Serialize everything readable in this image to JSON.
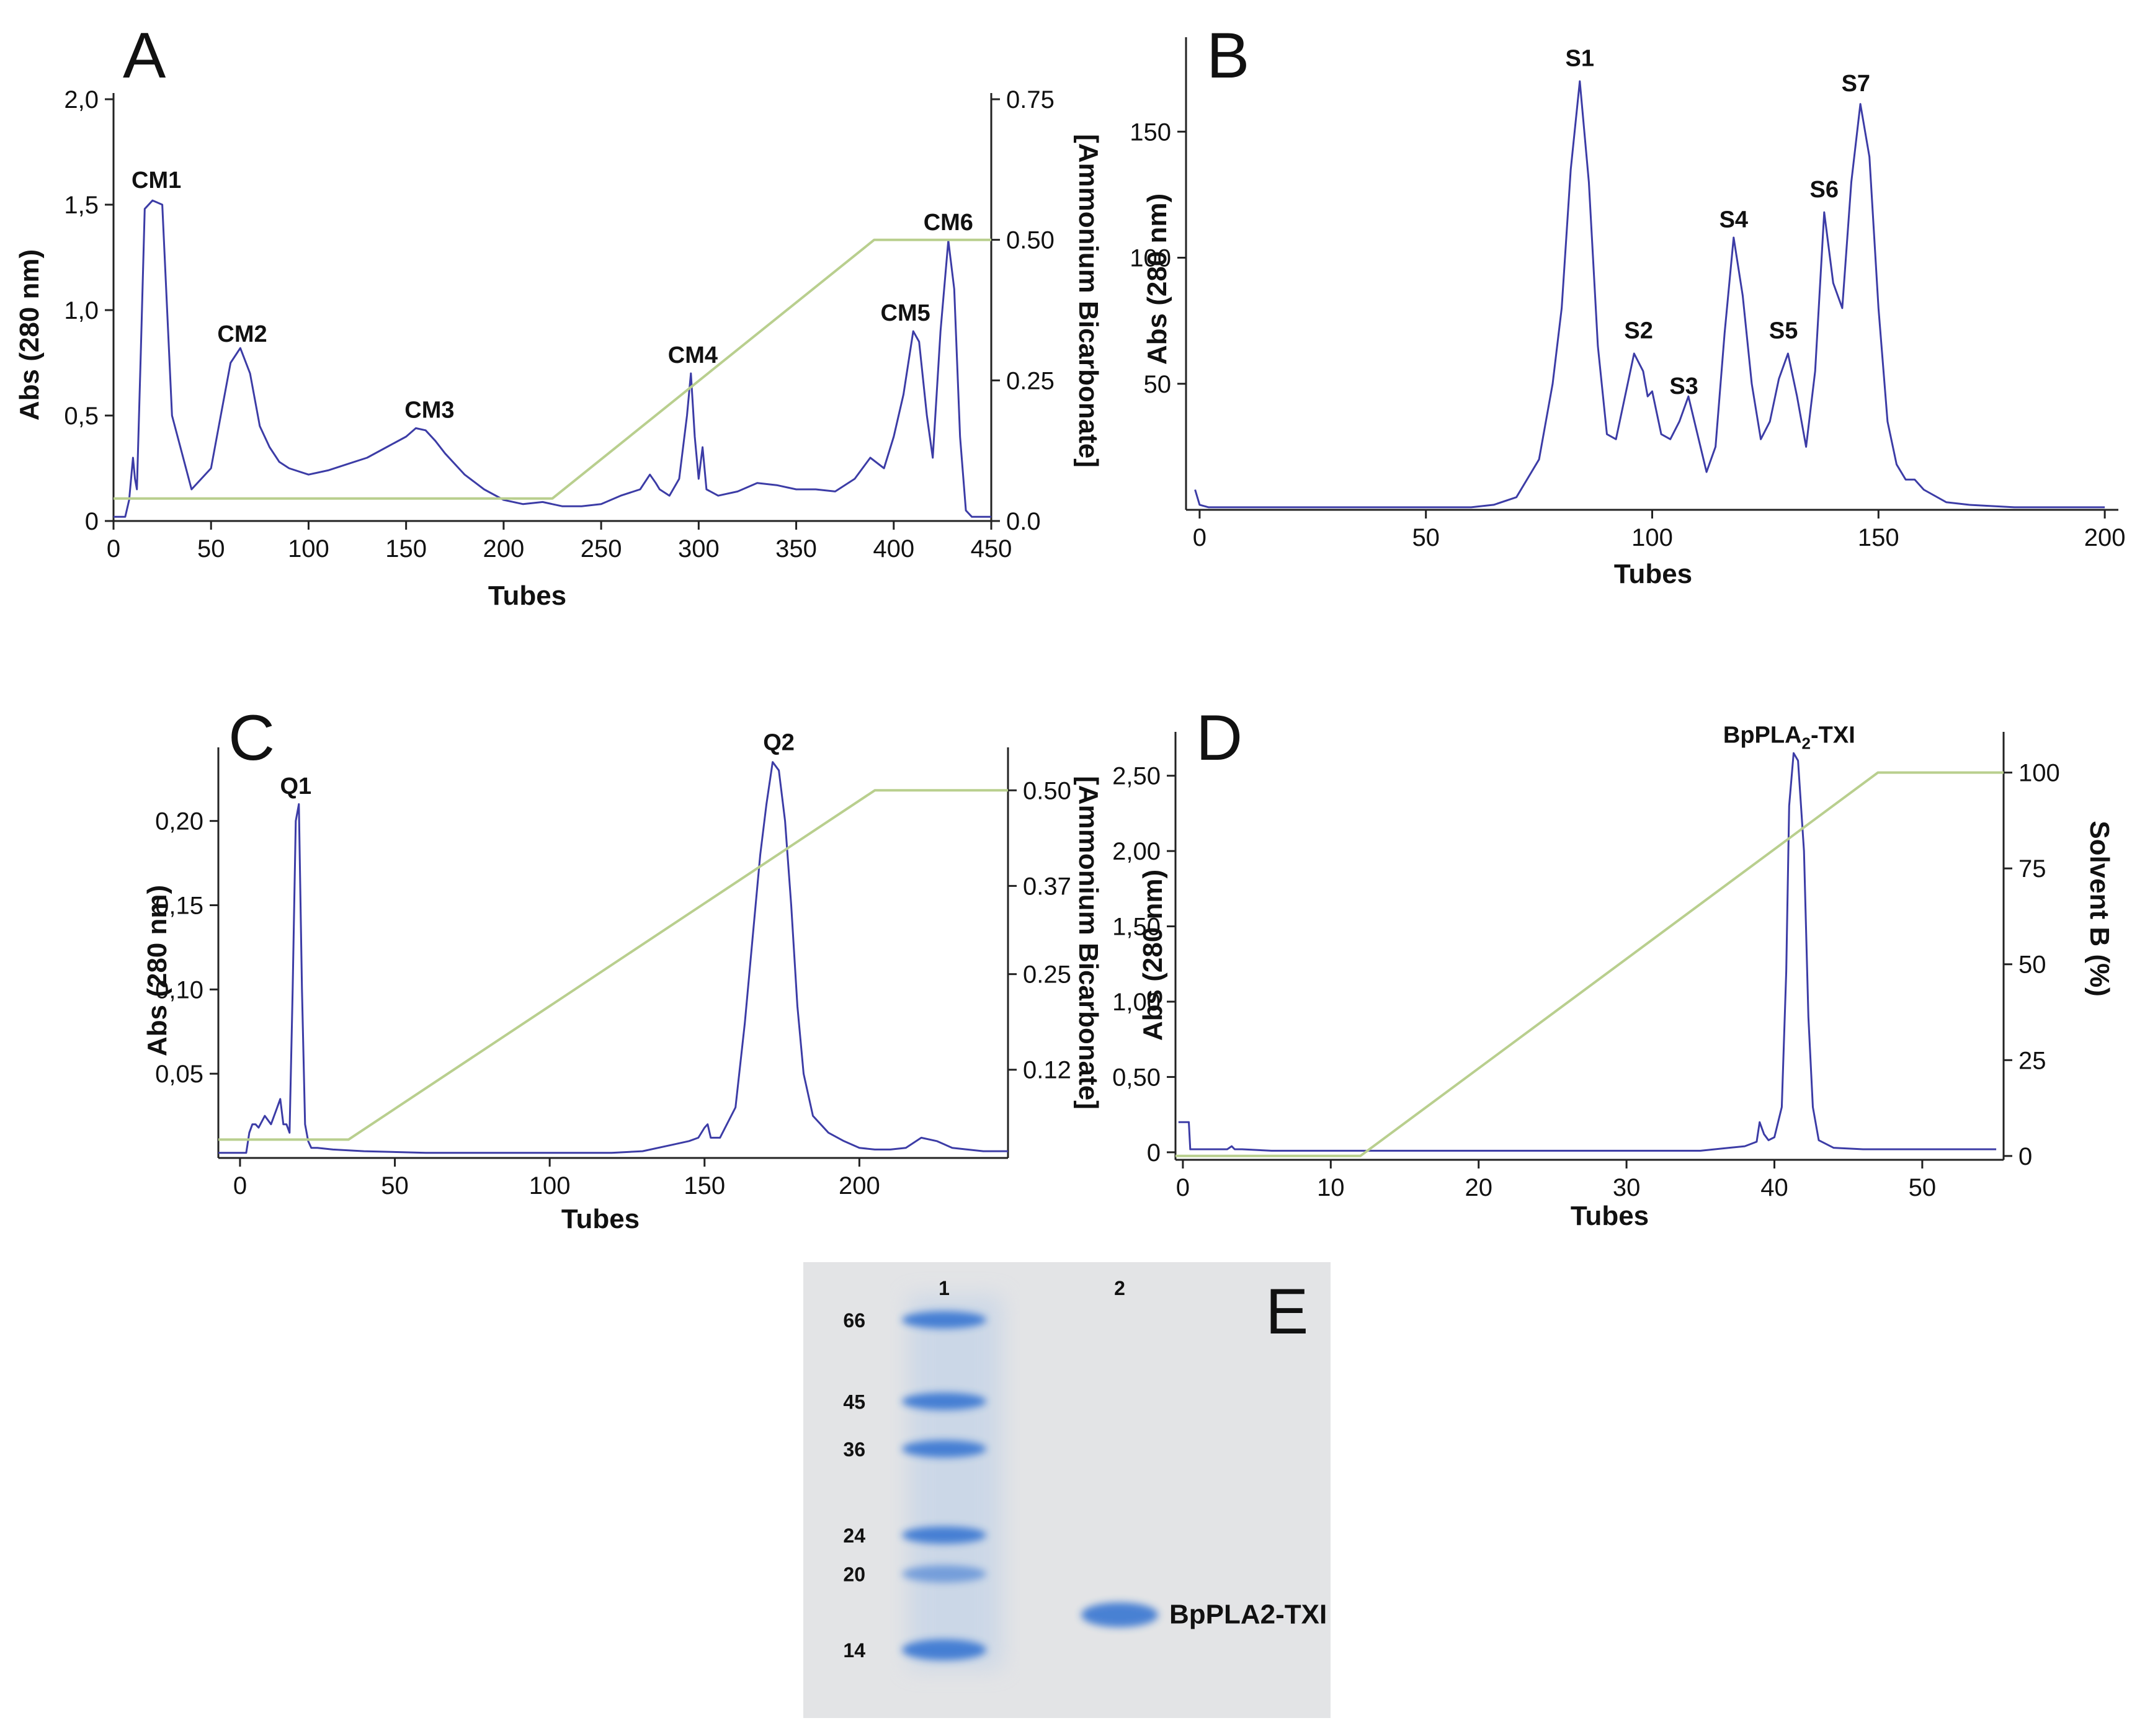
{
  "colors": {
    "absorbance": "#3c3ca6",
    "gradient": "#b9cf8e",
    "axis": "#222222",
    "gel_bg": "#e3e4e6",
    "band": "#2f6fd0"
  },
  "chart_data": [
    {
      "id": "A",
      "type": "line",
      "panel_label": "A",
      "xlabel": "Tubes",
      "ylabel": "Abs (280 nm)",
      "y2label": "[Ammonium Bicarbonate]",
      "xlim": [
        0,
        450
      ],
      "ylim": [
        0,
        2.0
      ],
      "y2lim": [
        0,
        0.75
      ],
      "xticks": [
        "0",
        "50",
        "100",
        "150",
        "200",
        "250",
        "300",
        "350",
        "400",
        "450"
      ],
      "yticks": [
        "0",
        "0,5",
        "1,0",
        "1,5",
        "2,0"
      ],
      "y2ticks": [
        "0.0",
        "0.25",
        "0.50",
        "0.75"
      ],
      "series": [
        {
          "role": "absorbance",
          "x": [
            0,
            6,
            8,
            10,
            11,
            12,
            14,
            16,
            20,
            25,
            30,
            40,
            50,
            55,
            60,
            65,
            70,
            75,
            80,
            85,
            90,
            100,
            110,
            120,
            130,
            140,
            150,
            155,
            160,
            165,
            170,
            180,
            190,
            200,
            210,
            220,
            230,
            240,
            250,
            260,
            270,
            275,
            278,
            280,
            285,
            290,
            294,
            296,
            298,
            300,
            302,
            304,
            310,
            320,
            330,
            340,
            350,
            360,
            370,
            380,
            388,
            395,
            400,
            405,
            410,
            413,
            417,
            420,
            424,
            428,
            431,
            434,
            437,
            440,
            450
          ],
          "y": [
            0.02,
            0.02,
            0.1,
            0.3,
            0.2,
            0.15,
            0.8,
            1.48,
            1.52,
            1.5,
            0.5,
            0.15,
            0.25,
            0.5,
            0.75,
            0.82,
            0.7,
            0.45,
            0.35,
            0.28,
            0.25,
            0.22,
            0.24,
            0.27,
            0.3,
            0.35,
            0.4,
            0.44,
            0.43,
            0.38,
            0.32,
            0.22,
            0.15,
            0.1,
            0.08,
            0.09,
            0.07,
            0.07,
            0.08,
            0.12,
            0.15,
            0.22,
            0.18,
            0.15,
            0.12,
            0.2,
            0.5,
            0.7,
            0.4,
            0.2,
            0.35,
            0.15,
            0.12,
            0.14,
            0.18,
            0.17,
            0.15,
            0.15,
            0.14,
            0.2,
            0.3,
            0.25,
            0.4,
            0.6,
            0.9,
            0.85,
            0.5,
            0.3,
            0.9,
            1.33,
            1.1,
            0.4,
            0.05,
            0.02,
            0.02
          ]
        },
        {
          "role": "gradient",
          "axis": "y2",
          "x": [
            0,
            225,
            390,
            450
          ],
          "y": [
            0.04,
            0.04,
            0.5,
            0.5
          ]
        }
      ],
      "annotations": [
        {
          "text": "CM1",
          "x": 22,
          "y": 1.58
        },
        {
          "text": "CM2",
          "x": 66,
          "y": 0.85
        },
        {
          "text": "CM3",
          "x": 162,
          "y": 0.49
        },
        {
          "text": "CM4",
          "x": 297,
          "y": 0.75
        },
        {
          "text": "CM5",
          "x": 406,
          "y": 0.95
        },
        {
          "text": "CM6",
          "x": 428,
          "y": 1.38
        }
      ]
    },
    {
      "id": "B",
      "type": "line",
      "panel_label": "B",
      "xlabel": "Tubes",
      "ylabel": "Abs (280 nm)",
      "xlim": [
        -3,
        203
      ],
      "ylim": [
        0,
        185
      ],
      "xticks": [
        "0",
        "50",
        "100",
        "150",
        "200"
      ],
      "yticks": [
        "50",
        "100",
        "150"
      ],
      "series": [
        {
          "role": "absorbance",
          "x": [
            -1,
            0,
            2,
            10,
            20,
            30,
            40,
            50,
            60,
            65,
            70,
            75,
            78,
            80,
            82,
            84,
            86,
            88,
            90,
            92,
            94,
            96,
            98,
            99,
            100,
            102,
            104,
            106,
            108,
            110,
            112,
            114,
            116,
            118,
            120,
            122,
            124,
            126,
            128,
            130,
            132,
            134,
            136,
            138,
            140,
            142,
            144,
            146,
            148,
            150,
            152,
            154,
            156,
            158,
            160,
            165,
            170,
            180,
            190,
            200
          ],
          "y": [
            8,
            2,
            1,
            1,
            1,
            1,
            1,
            1,
            1,
            2,
            5,
            20,
            50,
            80,
            135,
            170,
            130,
            65,
            30,
            28,
            45,
            62,
            55,
            45,
            47,
            30,
            28,
            35,
            45,
            30,
            15,
            25,
            70,
            108,
            85,
            50,
            28,
            35,
            52,
            62,
            45,
            25,
            55,
            118,
            90,
            80,
            130,
            161,
            140,
            80,
            35,
            18,
            12,
            12,
            8,
            3,
            2,
            1,
            1,
            1
          ]
        }
      ],
      "annotations": [
        {
          "text": "S1",
          "x": 84,
          "y": 176
        },
        {
          "text": "S2",
          "x": 97,
          "y": 68
        },
        {
          "text": "S3",
          "x": 107,
          "y": 46
        },
        {
          "text": "S4",
          "x": 118,
          "y": 112
        },
        {
          "text": "S5",
          "x": 129,
          "y": 68
        },
        {
          "text": "S6",
          "x": 138,
          "y": 124
        },
        {
          "text": "S7",
          "x": 145,
          "y": 166
        }
      ]
    },
    {
      "id": "C",
      "type": "line",
      "panel_label": "C",
      "xlabel": "Tubes",
      "ylabel": "Abs (280 nm)",
      "y2label": "[Ammonium Bicarbonate]",
      "xlim": [
        -7,
        248
      ],
      "ylim": [
        0,
        0.24
      ],
      "y2lim": [
        0,
        0.55
      ],
      "xticks": [
        "0",
        "50",
        "100",
        "150",
        "200"
      ],
      "yticks": [
        "0,05",
        "0,10",
        "0,15",
        "0,20"
      ],
      "y2ticks": [
        "0.12",
        "0.25",
        "0.37",
        "0.50"
      ],
      "series": [
        {
          "role": "absorbance",
          "x": [
            -7,
            2,
            3,
            4,
            5,
            6,
            8,
            10,
            11,
            12,
            13,
            14,
            15,
            16,
            17,
            18,
            19,
            20,
            21,
            22,
            23,
            24,
            25,
            30,
            40,
            60,
            80,
            100,
            120,
            130,
            140,
            145,
            148,
            150,
            151,
            152,
            155,
            160,
            163,
            166,
            168,
            170,
            172,
            174,
            176,
            178,
            180,
            182,
            185,
            190,
            195,
            200,
            205,
            210,
            215,
            220,
            225,
            230,
            240,
            248
          ],
          "y": [
            0.003,
            0.003,
            0.015,
            0.02,
            0.02,
            0.018,
            0.025,
            0.02,
            0.025,
            0.03,
            0.035,
            0.02,
            0.02,
            0.015,
            0.1,
            0.2,
            0.21,
            0.1,
            0.02,
            0.01,
            0.006,
            0.006,
            0.006,
            0.005,
            0.004,
            0.003,
            0.003,
            0.003,
            0.003,
            0.004,
            0.008,
            0.01,
            0.012,
            0.018,
            0.02,
            0.012,
            0.012,
            0.03,
            0.08,
            0.14,
            0.18,
            0.21,
            0.235,
            0.23,
            0.2,
            0.15,
            0.09,
            0.05,
            0.025,
            0.015,
            0.01,
            0.006,
            0.005,
            0.005,
            0.006,
            0.012,
            0.01,
            0.006,
            0.004,
            0.004
          ]
        },
        {
          "role": "gradient",
          "axis": "y2",
          "x": [
            -7,
            35,
            205,
            248
          ],
          "y": [
            0.025,
            0.025,
            0.5,
            0.5
          ]
        }
      ],
      "annotations": [
        {
          "text": "Q1",
          "x": 18,
          "y": 0.216
        },
        {
          "text": "Q2",
          "x": 174,
          "y": 0.242
        }
      ]
    },
    {
      "id": "D",
      "type": "line",
      "panel_label": "D",
      "xlabel": "Tubes",
      "ylabel": "Abs (280 nm)",
      "y2label": "Solvent B (%)",
      "xlim": [
        -0.5,
        55.5
      ],
      "ylim": [
        -0.05,
        2.75
      ],
      "y2lim": [
        -1,
        109
      ],
      "xticks": [
        "0",
        "10",
        "20",
        "30",
        "40",
        "50"
      ],
      "yticks": [
        "0",
        "0,50",
        "1,00",
        "1,50",
        "2,00",
        "2,50"
      ],
      "y2ticks": [
        "0",
        "25",
        "50",
        "75",
        "100"
      ],
      "series": [
        {
          "role": "absorbance",
          "x": [
            -0.3,
            0,
            0.4,
            0.5,
            1,
            3,
            3.3,
            3.5,
            4,
            6,
            10,
            15,
            20,
            25,
            30,
            35,
            38,
            38.8,
            39,
            39.3,
            39.6,
            40,
            40.5,
            40.8,
            41,
            41.3,
            41.6,
            42,
            42.3,
            42.6,
            43,
            44,
            46,
            50,
            55
          ],
          "y": [
            0.2,
            0.2,
            0.2,
            0.02,
            0.02,
            0.02,
            0.04,
            0.02,
            0.02,
            0.01,
            0.01,
            0.01,
            0.01,
            0.01,
            0.01,
            0.01,
            0.04,
            0.07,
            0.2,
            0.12,
            0.08,
            0.1,
            0.3,
            1.2,
            2.3,
            2.65,
            2.6,
            2.0,
            0.9,
            0.3,
            0.08,
            0.03,
            0.02,
            0.02,
            0.02
          ]
        },
        {
          "role": "gradient",
          "axis": "y2",
          "x": [
            -0.5,
            12,
            47,
            55.5
          ],
          "y": [
            0,
            0,
            100,
            100
          ]
        }
      ],
      "annotations": [
        {
          "text": "BpPLA",
          "sub": "2",
          "tail": "-TXI",
          "x": 41,
          "y": 2.72
        }
      ]
    }
  ],
  "gel": {
    "panel_label": "E",
    "lanes": [
      "1",
      "2"
    ],
    "markers": [
      {
        "label": "66",
        "kda": 66
      },
      {
        "label": "45",
        "kda": 45
      },
      {
        "label": "36",
        "kda": 36
      },
      {
        "label": "24",
        "kda": 24
      },
      {
        "label": "20",
        "kda": 20
      },
      {
        "label": "14",
        "kda": 14
      }
    ],
    "sample_band": {
      "label": "BpPLA2-TXI",
      "lane": 2,
      "kda": 16.5
    }
  }
}
